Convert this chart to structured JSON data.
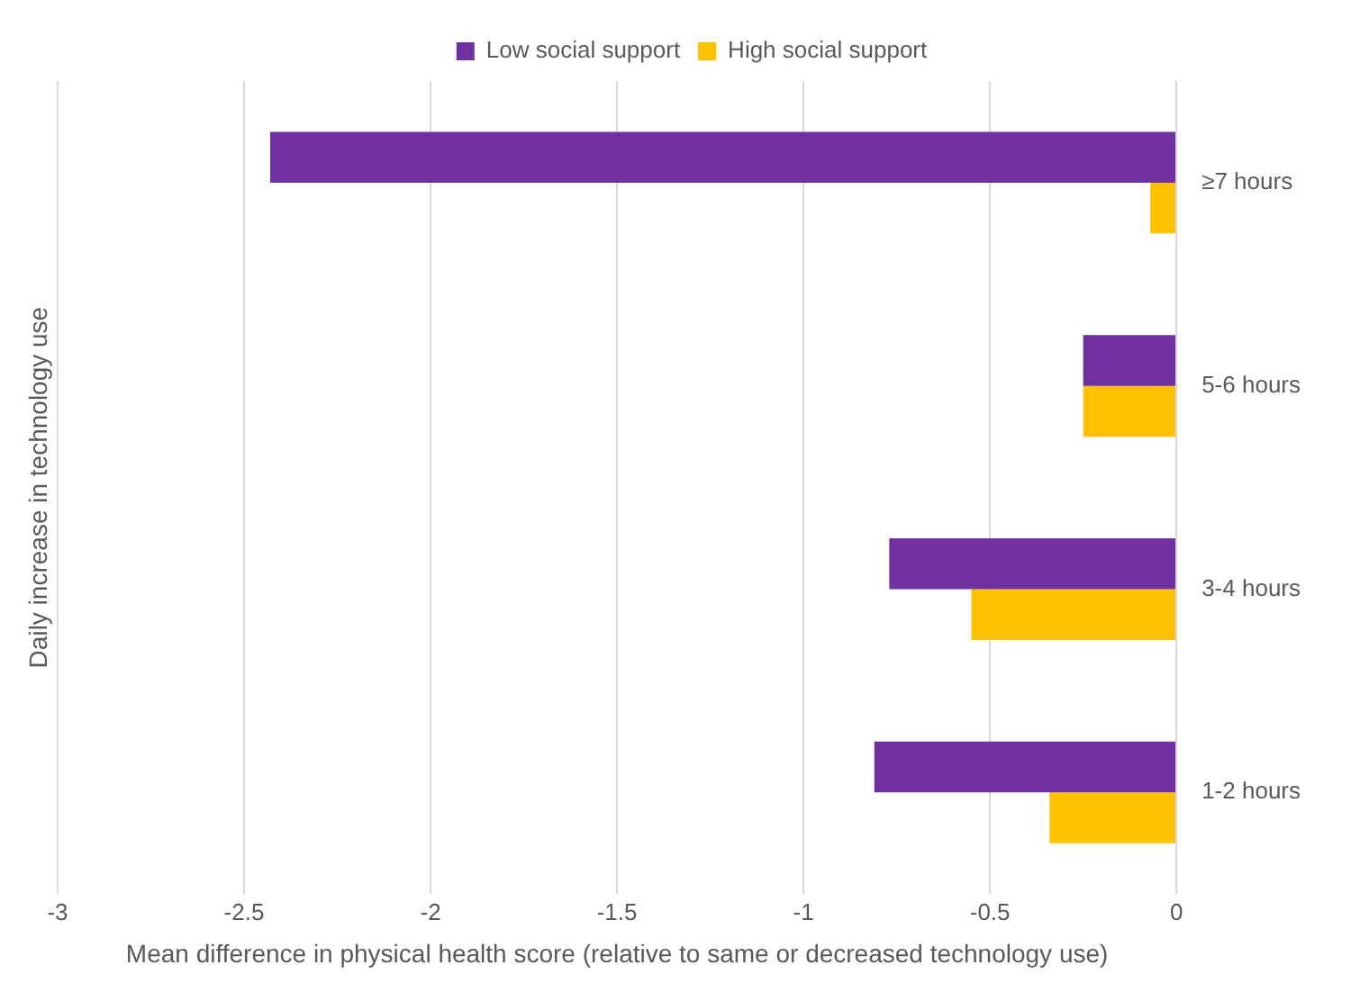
{
  "chart_data": {
    "type": "bar",
    "orientation": "horizontal",
    "xlabel": "Mean difference in physical health score (relative to same or decreased technology use)",
    "ylabel": "Daily increase in technology use",
    "categories": [
      "≥7 hours",
      "5-6 hours",
      "3-4 hours",
      "1-2 hours"
    ],
    "series": [
      {
        "name": "Low social support",
        "color": "#7030a0",
        "values": [
          -2.43,
          -0.25,
          -0.77,
          -0.81
        ]
      },
      {
        "name": "High social support",
        "color": "#ffc000",
        "values": [
          -0.07,
          -0.25,
          -0.55,
          -0.34
        ]
      }
    ],
    "xlim": [
      -3,
      0
    ],
    "xticks": [
      -3,
      -2.5,
      -2,
      -1.5,
      -1,
      -0.5,
      0
    ],
    "grid": "x",
    "legend": "top"
  }
}
